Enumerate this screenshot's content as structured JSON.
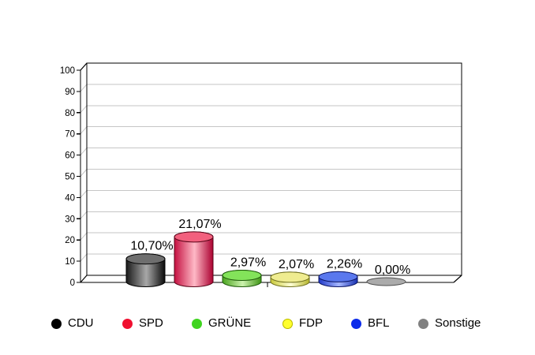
{
  "chart_data": {
    "type": "bar",
    "style": "3d-cylinder",
    "title": "",
    "xlabel": "",
    "ylabel": "",
    "categories": [
      "CDU",
      "SPD",
      "GRÜNE",
      "FDP",
      "BFL",
      "Sonstige"
    ],
    "values": [
      10.7,
      21.07,
      2.97,
      2.07,
      2.26,
      0.0
    ],
    "value_labels": [
      "10,70%",
      "21,07%",
      "2,97%",
      "2,07%",
      "2,26%",
      "0,00%"
    ],
    "ylim": [
      0,
      100
    ],
    "ytick_step": 10,
    "ytick_labels": [
      "0",
      "10",
      "20",
      "30",
      "40",
      "50",
      "60",
      "70",
      "80",
      "90",
      "100"
    ],
    "grid": true,
    "legend_position": "bottom",
    "colors": {
      "background": "#FFFFFF",
      "grid_color": "#C6C6C6",
      "frame_color": "#000000",
      "label_color": "#000000",
      "bars": [
        {
          "name": "CDU",
          "edge": "#1A1A1A",
          "light": "#A8A8A8",
          "edge2": "#0A0A0A",
          "top": "#6E6E6E",
          "stroke": "#000000",
          "legend_dot": "#000000"
        },
        {
          "name": "SPD",
          "edge": "#C41040",
          "light": "#FFB9C6",
          "edge2": "#AB0030",
          "top": "#F2607E",
          "stroke": "#5A0418",
          "legend_dot": "#F01030"
        },
        {
          "name": "GRÜNE",
          "edge": "#4AA41E",
          "light": "#CCF2AE",
          "edge2": "#3E9414",
          "top": "#83E35A",
          "stroke": "#1E5A0A",
          "legend_dot": "#3FD41F"
        },
        {
          "name": "FDP",
          "edge": "#C9C93A",
          "light": "#FFFFD6",
          "edge2": "#B5B52C",
          "top": "#EFEC90",
          "stroke": "#70701E",
          "legend_dot": "#FFFF2E"
        },
        {
          "name": "BFL",
          "edge": "#2038C8",
          "light": "#A6B8FF",
          "edge2": "#1830B0",
          "top": "#5A78EE",
          "stroke": "#0A1464",
          "legend_dot": "#0B2BEA"
        },
        {
          "name": "Sonstige",
          "edge": "#9E9E9E",
          "light": "#B4B4B4",
          "edge2": "#9E9E9E",
          "top": "#ABABAB",
          "stroke": "#4F4F4F",
          "legend_dot": "#808080"
        }
      ]
    }
  }
}
